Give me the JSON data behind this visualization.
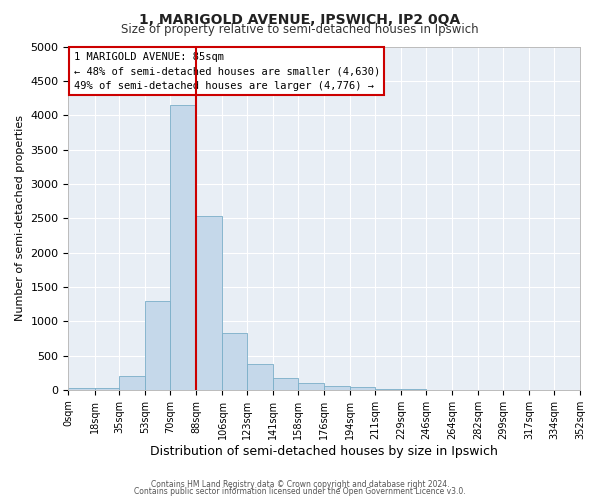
{
  "title": "1, MARIGOLD AVENUE, IPSWICH, IP2 0QA",
  "subtitle": "Size of property relative to semi-detached houses in Ipswich",
  "xlabel": "Distribution of semi-detached houses by size in Ipswich",
  "ylabel": "Number of semi-detached properties",
  "bar_color": "#c5d8ea",
  "bar_edge_color": "#7aaec8",
  "bg_color": "#e8eef5",
  "grid_color": "#ffffff",
  "vline_x": 88,
  "vline_color": "#cc0000",
  "bin_edges": [
    0,
    18,
    35,
    53,
    70,
    88,
    106,
    123,
    141,
    158,
    176,
    194,
    211,
    229,
    246,
    264,
    282,
    299,
    317,
    334,
    352
  ],
  "bin_labels": [
    "0sqm",
    "18sqm",
    "35sqm",
    "53sqm",
    "70sqm",
    "88sqm",
    "106sqm",
    "123sqm",
    "141sqm",
    "158sqm",
    "176sqm",
    "194sqm",
    "211sqm",
    "229sqm",
    "246sqm",
    "264sqm",
    "282sqm",
    "299sqm",
    "317sqm",
    "334sqm",
    "352sqm"
  ],
  "counts": [
    30,
    30,
    200,
    1300,
    4150,
    2530,
    830,
    370,
    170,
    100,
    60,
    40,
    15,
    8,
    3,
    2,
    1,
    1,
    0,
    0
  ],
  "ylim": [
    0,
    5000
  ],
  "yticks": [
    0,
    500,
    1000,
    1500,
    2000,
    2500,
    3000,
    3500,
    4000,
    4500,
    5000
  ],
  "annotation_title": "1 MARIGOLD AVENUE: 85sqm",
  "annotation_line1": "← 48% of semi-detached houses are smaller (4,630)",
  "annotation_line2": "49% of semi-detached houses are larger (4,776) →",
  "annotation_box_color": "#ffffff",
  "annotation_box_edge": "#cc0000",
  "footer1": "Contains HM Land Registry data © Crown copyright and database right 2024.",
  "footer2": "Contains public sector information licensed under the Open Government Licence v3.0."
}
